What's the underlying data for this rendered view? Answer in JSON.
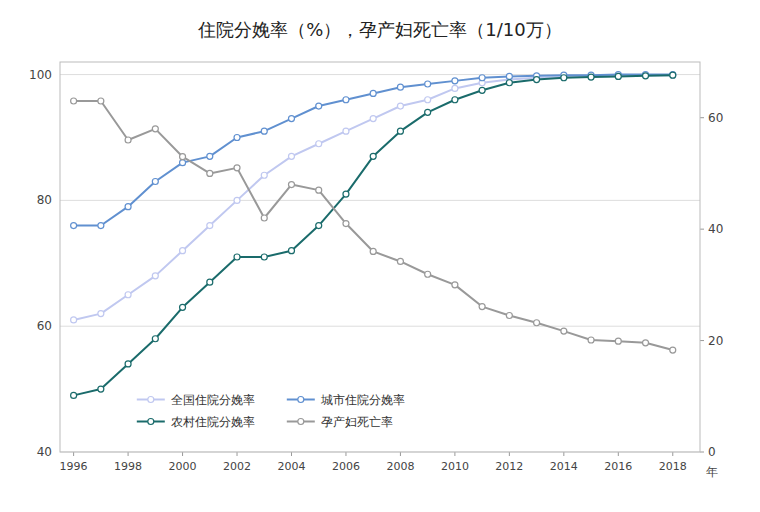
{
  "chart_data": {
    "type": "line",
    "title": "住院分娩率（%），孕产妇死亡率（1/10万）",
    "x_label": "年",
    "x": [
      1996,
      1997,
      1998,
      1999,
      2000,
      2001,
      2002,
      2003,
      2004,
      2005,
      2006,
      2007,
      2008,
      2009,
      2010,
      2011,
      2012,
      2013,
      2014,
      2015,
      2016,
      2017,
      2018
    ],
    "series": [
      {
        "name": "全国住院分娩率",
        "color": "#c0c8f0",
        "values": [
          61,
          62,
          65,
          68,
          72,
          76,
          80,
          84,
          87,
          89,
          91,
          93,
          95,
          96,
          97.8,
          98.7,
          99.2,
          99.5,
          99.6,
          99.7,
          99.8,
          99.9,
          99.9
        ]
      },
      {
        "name": "城市住院分娩率",
        "color": "#6090d0",
        "values": [
          76,
          76,
          79,
          83,
          86,
          87,
          90,
          91,
          93,
          95,
          96,
          97,
          98,
          98.5,
          99,
          99.5,
          99.7,
          99.8,
          99.9,
          99.9,
          100,
          100,
          100
        ]
      },
      {
        "name": "农村住院分娩率",
        "color": "#1a6b6b",
        "values": [
          49,
          50,
          54,
          58,
          63,
          67,
          71,
          71,
          72,
          76,
          81,
          87,
          91,
          94,
          96,
          97.5,
          98.7,
          99.2,
          99.5,
          99.6,
          99.7,
          99.8,
          99.9
        ]
      },
      {
        "name": "孕产妇死亡率",
        "color": "#999999",
        "axis": "y2",
        "values": [
          63,
          63,
          56,
          58,
          53,
          50,
          51,
          42,
          48,
          47,
          41,
          36,
          34.2,
          31.9,
          30,
          26.1,
          24.5,
          23.2,
          21.7,
          20.1,
          19.9,
          19.6,
          18.3
        ]
      }
    ],
    "xlim": [
      1995.5,
      2019.0
    ],
    "xticks": [
      1996,
      1998,
      2000,
      2002,
      2004,
      2006,
      2008,
      2010,
      2012,
      2014,
      2016,
      2018
    ],
    "ylim": [
      40,
      102
    ],
    "yticks": [
      40,
      60,
      80,
      100
    ],
    "y2lim": [
      0,
      70.0
    ],
    "y2ticks": [
      0,
      20,
      40,
      60
    ],
    "grid": true,
    "legend": "lower left",
    "marker": "circle",
    "line_style": "solid"
  }
}
